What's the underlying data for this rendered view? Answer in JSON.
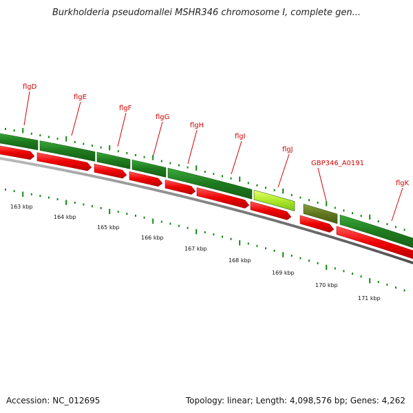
{
  "title": "Burkholderia pseudomallei MSHR346 chromosome I, complete gen...",
  "footer": {
    "accession": "Accession: NC_012695",
    "stats": "Topology: linear; Length: 4,098,576 bp; Genes: 4,262"
  },
  "colors": {
    "gene_label": "#d40000",
    "cds": "#ee0000",
    "gene_dark": "#228b22",
    "gene_highlight": "#adff2f",
    "gene_olive": "#6b8e23",
    "tick": "#118811",
    "backbone": "#777777"
  },
  "gene_labels": [
    "flgD",
    "flgE",
    "flgF",
    "flgG",
    "flgH",
    "flgI",
    "flgJ",
    "GBP346_A0191",
    "flgK"
  ],
  "scale_labels": [
    "163 kbp",
    "164 kbp",
    "165 kbp",
    "166 kbp",
    "167 kbp",
    "168 kbp",
    "169 kbp",
    "170 kbp",
    "171 kbp"
  ]
}
